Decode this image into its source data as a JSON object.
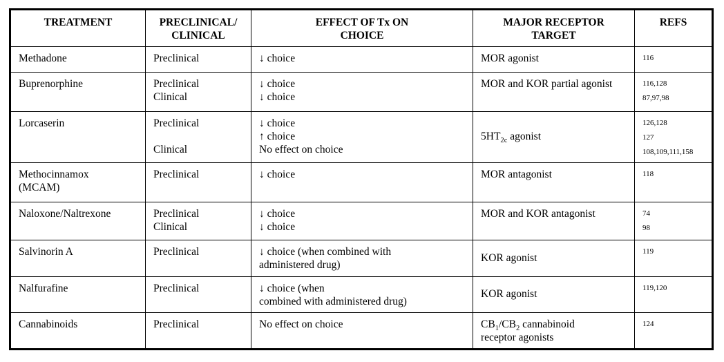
{
  "table": {
    "columns": [
      {
        "id": "treatment",
        "label": [
          "TREATMENT"
        ]
      },
      {
        "id": "phase",
        "label": [
          "PRECLINICAL/",
          "CLINICAL"
        ]
      },
      {
        "id": "effect",
        "label": [
          "EFFECT OF Tx ON",
          "CHOICE"
        ]
      },
      {
        "id": "target",
        "label": [
          "MAJOR RECEPTOR",
          "TARGET"
        ]
      },
      {
        "id": "refs",
        "label": [
          "REFS"
        ]
      }
    ],
    "rows": [
      {
        "treatment": [
          "Methadone"
        ],
        "phase": [
          "Preclinical"
        ],
        "effect": [
          "↓ choice"
        ],
        "target": [
          [
            {
              "t": "MOR agonist"
            }
          ]
        ],
        "refs": [
          "116"
        ]
      },
      {
        "treatment": [
          "Buprenorphine"
        ],
        "phase": [
          "Preclinical",
          "Clinical"
        ],
        "effect": [
          "↓ choice",
          "↓ choice"
        ],
        "target": [
          [
            {
              "t": "MOR and KOR partial agonist"
            }
          ]
        ],
        "refs": [
          "116,128",
          "87,97,98"
        ]
      },
      {
        "treatment": [
          "Lorcaserin"
        ],
        "phase": [
          "Preclinical",
          "",
          "Clinical"
        ],
        "effect": [
          "↓ choice",
          "↑ choice",
          "No effect on choice"
        ],
        "target": [
          [
            {
              "t": "5HT"
            },
            {
              "t": "2c",
              "sub": true
            },
            {
              "t": " agonist"
            }
          ]
        ],
        "refs": [
          "126,128",
          "127",
          "108,109,111,158"
        ]
      },
      {
        "treatment": [
          "Methocinnamox",
          "(MCAM)"
        ],
        "phase": [
          "Preclinical"
        ],
        "effect": [
          "↓ choice"
        ],
        "target": [
          [
            {
              "t": "MOR antagonist"
            }
          ]
        ],
        "refs": [
          "118"
        ]
      },
      {
        "treatment": [
          "Naloxone/Naltrexone"
        ],
        "phase": [
          "Preclinical",
          "Clinical"
        ],
        "effect": [
          "↓ choice",
          "↓ choice"
        ],
        "target": [
          [
            {
              "t": "MOR and KOR antagonist"
            }
          ]
        ],
        "refs": [
          "74",
          "98"
        ]
      },
      {
        "treatment": [
          "Salvinorin A"
        ],
        "phase": [
          "Preclinical"
        ],
        "effect": [
          "↓ choice (when combined with",
          "administered drug)"
        ],
        "target": [
          [
            {
              "t": "KOR agonist"
            }
          ]
        ],
        "refs": [
          "119"
        ]
      },
      {
        "treatment": [
          "Nalfurafine"
        ],
        "phase": [
          "Preclinical"
        ],
        "effect": [
          "↓ choice (when",
          "combined with administered drug)"
        ],
        "target": [
          [
            {
              "t": "KOR agonist"
            }
          ]
        ],
        "refs": [
          "119,120"
        ]
      },
      {
        "treatment": [
          "Cannabinoids"
        ],
        "phase": [
          "Preclinical"
        ],
        "effect": [
          "No effect on choice"
        ],
        "target": [
          [
            {
              "t": "CB"
            },
            {
              "t": "1",
              "sub": true
            },
            {
              "t": "/CB"
            },
            {
              "t": "2",
              "sub": true
            },
            {
              "t": " cannabinoid"
            }
          ],
          [
            {
              "t": "receptor agonists"
            }
          ]
        ],
        "refs": [
          "124"
        ]
      }
    ]
  }
}
